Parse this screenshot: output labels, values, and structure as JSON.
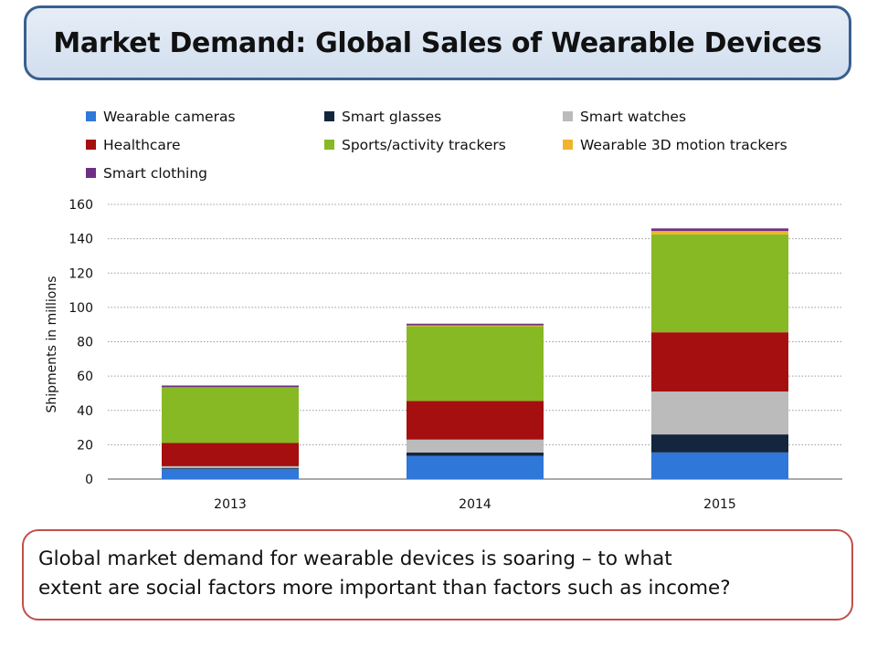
{
  "header": {
    "title": "Market Demand: Global Sales of Wearable Devices"
  },
  "caption": {
    "text": "Global market demand for wearable devices is soaring – to what\nextent are social factors more important than factors such as income?"
  },
  "chart_data": {
    "type": "bar",
    "stacked": true,
    "categories": [
      "2013",
      "2014",
      "2015"
    ],
    "ylabel": "Shipments in millions",
    "xlabel": "",
    "ylim": [
      0,
      160
    ],
    "yticks": [
      0,
      20,
      40,
      60,
      80,
      100,
      120,
      140,
      160
    ],
    "grid": true,
    "legend_position": "top",
    "series": [
      {
        "name": "Wearable cameras",
        "color": "#2f77d9",
        "values": [
          6,
          13.5,
          15.5
        ]
      },
      {
        "name": "Smart glasses",
        "color": "#14263d",
        "values": [
          0.5,
          2,
          10.5
        ]
      },
      {
        "name": "Smart watches",
        "color": "#bbbbbb",
        "values": [
          1,
          7.5,
          25
        ]
      },
      {
        "name": "Healthcare",
        "color": "#a50f0f",
        "values": [
          13.5,
          22.5,
          34.5
        ]
      },
      {
        "name": "Sports/activity trackers",
        "color": "#87b925",
        "values": [
          32.5,
          43.5,
          57
        ]
      },
      {
        "name": "Wearable 3D motion trackers",
        "color": "#f0b42a",
        "values": [
          0,
          0.5,
          2
        ]
      },
      {
        "name": "Smart clothing",
        "color": "#6d3085",
        "values": [
          1,
          1,
          1.5
        ]
      }
    ]
  }
}
